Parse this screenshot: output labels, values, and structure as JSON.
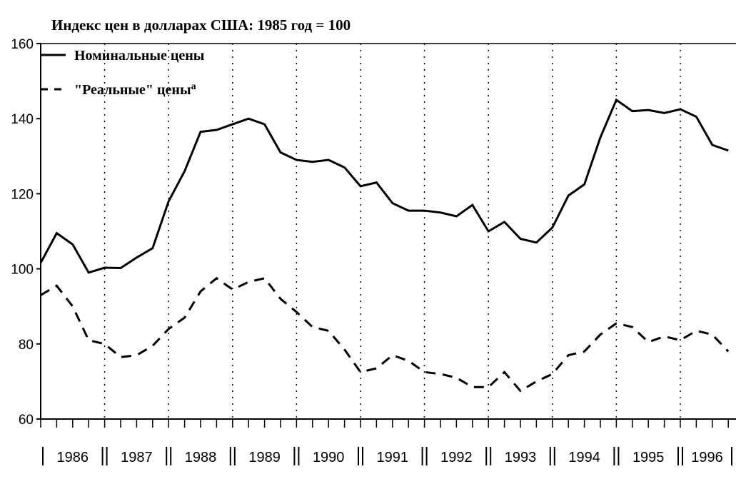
{
  "chart_data": {
    "type": "line",
    "title": "Индекс цен в долларах США: 1985 год = 100",
    "legend_note": "a",
    "categories": [
      "1986",
      null,
      null,
      null,
      "1987",
      null,
      null,
      null,
      "1988",
      null,
      null,
      null,
      "1989",
      null,
      null,
      null,
      "1990",
      null,
      null,
      null,
      "1991",
      null,
      null,
      null,
      "1992",
      null,
      null,
      null,
      "1993",
      null,
      null,
      null,
      "1994",
      null,
      null,
      null,
      "1995",
      null,
      null,
      null,
      "1996",
      null,
      null,
      null
    ],
    "series": [
      {
        "name": "Номинальные цены",
        "color": "#000000",
        "dash": "solid",
        "values": [
          101.6,
          109.5,
          106.5,
          99,
          100.3,
          100.2,
          103,
          105.5,
          118,
          126,
          136.5,
          137,
          138.5,
          140,
          138.5,
          131,
          129,
          128.5,
          129,
          127,
          122,
          123,
          117.5,
          115.5,
          115.5,
          115,
          114,
          117,
          110,
          112.5,
          108,
          107,
          111,
          119.5,
          122.5,
          135,
          145,
          142,
          142.3,
          141.5,
          142.5,
          140.5,
          133,
          131.5
        ]
      },
      {
        "name": "\"Реальные\" цены",
        "color": "#000000",
        "dash": "dashed",
        "values": [
          93,
          95.5,
          90,
          81,
          80,
          76.5,
          77,
          79.5,
          84,
          87,
          94,
          97.5,
          94.5,
          96.5,
          97.5,
          92,
          88.5,
          84.5,
          83.5,
          78.5,
          72.5,
          73.5,
          77,
          75.5,
          72.5,
          72,
          71,
          68.5,
          68.5,
          72.5,
          67.5,
          70,
          72,
          77,
          78,
          82.5,
          85.5,
          84.5,
          80.5,
          82,
          81,
          83.5,
          82.5,
          78
        ]
      }
    ],
    "ylim": [
      60,
      160
    ],
    "yticks": [
      60,
      80,
      100,
      120,
      140,
      160
    ]
  }
}
